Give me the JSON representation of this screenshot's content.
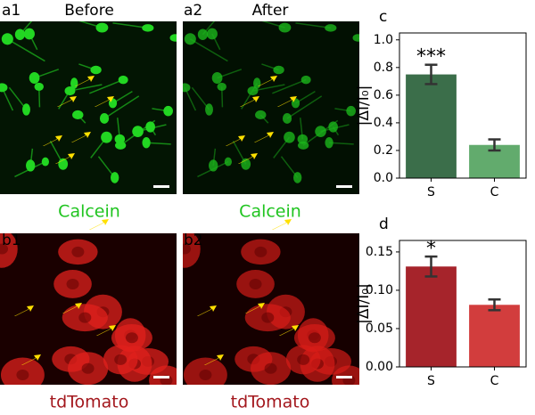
{
  "panels": {
    "a1": "a1",
    "a1_title": "Before",
    "a2": "a2",
    "a2_title": "After",
    "calcein_1": "Calcein",
    "calcein_2": "Calcein",
    "b1": "b1",
    "b2": "b2",
    "tdtomato_1": "tdTomato",
    "tdtomato_2": "tdTomato"
  },
  "chart_data": [
    {
      "type": "bar",
      "panel": "c",
      "ylabel": "|ΔI/I₀|",
      "categories": [
        "S",
        "C"
      ],
      "values": [
        0.75,
        0.24
      ],
      "errors": [
        0.07,
        0.04
      ],
      "colors": [
        "#3b6e4a",
        "#62ab6d"
      ],
      "annotations": [
        "***",
        null
      ],
      "ylim": [
        0,
        1.05
      ],
      "yticks": [
        {
          "value": 0,
          "label": "0.0"
        },
        {
          "value": 0.2,
          "label": "0.2"
        },
        {
          "value": 0.4,
          "label": "0.4"
        },
        {
          "value": 0.6,
          "label": "0.6"
        },
        {
          "value": 0.8,
          "label": "0.8"
        },
        {
          "value": 1,
          "label": "1.0"
        }
      ]
    },
    {
      "type": "bar",
      "panel": "d",
      "ylabel": "|ΔI/I₀|",
      "categories": [
        "S",
        "C"
      ],
      "values": [
        0.131,
        0.081
      ],
      "errors": [
        0.013,
        0.007
      ],
      "colors": [
        "#a6242b",
        "#d23d3d"
      ],
      "annotations": [
        "*",
        null
      ],
      "ylim": [
        0,
        0.165
      ],
      "yticks": [
        {
          "value": 0,
          "label": "0.00"
        },
        {
          "value": 0.05,
          "label": "0.05"
        },
        {
          "value": 0.1,
          "label": "0.10"
        },
        {
          "value": 0.15,
          "label": "0.15"
        }
      ]
    }
  ]
}
